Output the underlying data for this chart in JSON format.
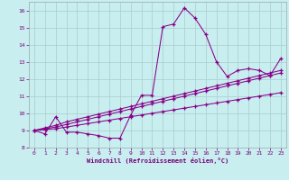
{
  "xlabel": "Windchill (Refroidissement éolien,°C)",
  "xlim": [
    -0.5,
    23.5
  ],
  "ylim": [
    8,
    16.5
  ],
  "xticks": [
    0,
    1,
    2,
    3,
    4,
    5,
    6,
    7,
    8,
    9,
    10,
    11,
    12,
    13,
    14,
    15,
    16,
    17,
    18,
    19,
    20,
    21,
    22,
    23
  ],
  "yticks": [
    8,
    9,
    10,
    11,
    12,
    13,
    14,
    15,
    16
  ],
  "background_color": "#c8eef0",
  "line_color": "#880088",
  "grid_color": "#aacccc",
  "line1_y": [
    9.0,
    8.8,
    9.8,
    8.9,
    8.9,
    8.8,
    8.7,
    8.55,
    8.55,
    9.9,
    11.05,
    11.05,
    15.05,
    15.2,
    16.15,
    15.55,
    14.6,
    13.0,
    12.15,
    12.5,
    12.6,
    12.5,
    12.2,
    13.2
  ],
  "line2_y": [
    9.0,
    9.15,
    9.3,
    9.5,
    9.65,
    9.8,
    9.95,
    10.1,
    10.25,
    10.4,
    10.55,
    10.7,
    10.85,
    11.0,
    11.15,
    11.3,
    11.45,
    11.6,
    11.75,
    11.9,
    12.05,
    12.2,
    12.35,
    12.5
  ],
  "line3_y": [
    9.0,
    9.1,
    9.2,
    9.35,
    9.5,
    9.65,
    9.8,
    9.95,
    10.1,
    10.25,
    10.4,
    10.55,
    10.7,
    10.85,
    11.0,
    11.15,
    11.3,
    11.45,
    11.6,
    11.75,
    11.9,
    12.05,
    12.2,
    12.35
  ],
  "line4_y": [
    9.0,
    9.05,
    9.1,
    9.2,
    9.3,
    9.4,
    9.5,
    9.6,
    9.7,
    9.8,
    9.9,
    10.0,
    10.1,
    10.2,
    10.3,
    10.4,
    10.5,
    10.6,
    10.7,
    10.8,
    10.9,
    11.0,
    11.1,
    11.2
  ]
}
